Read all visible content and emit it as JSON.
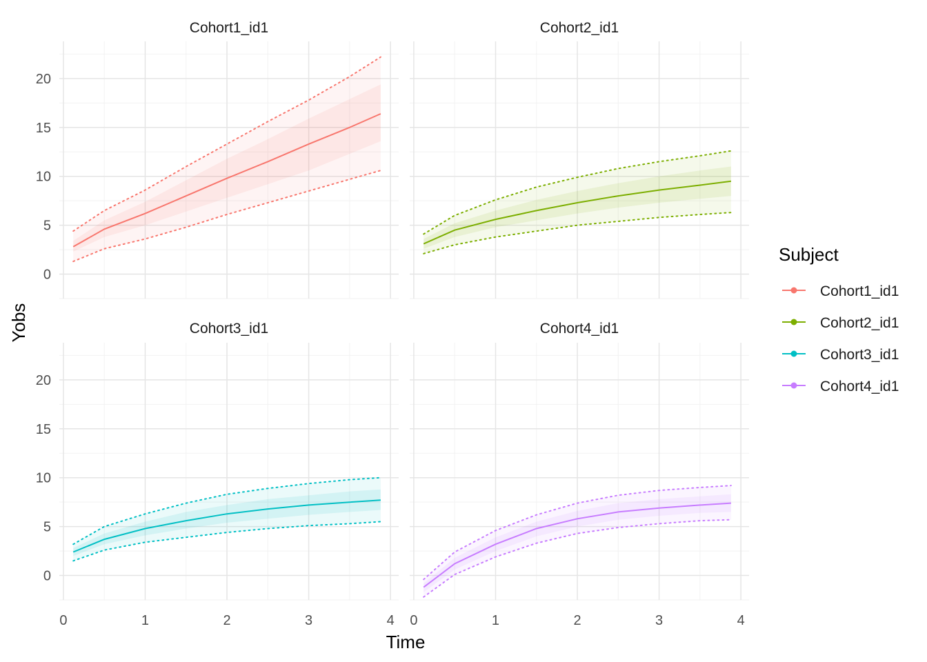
{
  "chart_data": {
    "type": "line",
    "facet_layout": "2x2",
    "xlabel": "Time",
    "ylabel": "Yobs",
    "xlim": [
      -0.05,
      4.1
    ],
    "ylim": [
      -2.5,
      23.8
    ],
    "x_ticks": [
      0,
      1,
      2,
      3,
      4
    ],
    "y_ticks": [
      0,
      5,
      10,
      15,
      20
    ],
    "grid": true,
    "legend": {
      "title": "Subject",
      "placement": "right",
      "entries": [
        "Cohort1_id1",
        "Cohort2_id1",
        "Cohort3_id1",
        "Cohort4_id1"
      ]
    },
    "x": [
      0.12,
      0.5,
      1.0,
      1.5,
      2.0,
      2.5,
      3.0,
      3.5,
      3.88
    ],
    "series": [
      {
        "name": "Cohort1_id1",
        "color": "#F8766D",
        "median": [
          2.8,
          4.6,
          6.2,
          8.0,
          9.8,
          11.5,
          13.3,
          15.0,
          16.4
        ],
        "lower_dotted": [
          1.3,
          2.6,
          3.6,
          4.8,
          6.1,
          7.3,
          8.5,
          9.7,
          10.6
        ],
        "upper_dotted": [
          4.4,
          6.5,
          8.6,
          11.0,
          13.3,
          15.6,
          17.8,
          20.2,
          22.2
        ],
        "inner_lower": [
          2.3,
          3.8,
          5.0,
          6.4,
          7.8,
          9.2,
          10.6,
          12.3,
          13.6
        ],
        "inner_upper": [
          3.4,
          5.5,
          7.4,
          9.6,
          11.8,
          13.8,
          15.9,
          17.9,
          19.4
        ]
      },
      {
        "name": "Cohort2_id1",
        "color": "#7CAE00",
        "median": [
          3.1,
          4.5,
          5.6,
          6.5,
          7.3,
          8.0,
          8.6,
          9.1,
          9.5
        ],
        "lower_dotted": [
          2.1,
          3.0,
          3.8,
          4.4,
          5.0,
          5.4,
          5.8,
          6.1,
          6.3
        ],
        "upper_dotted": [
          4.1,
          6.0,
          7.6,
          8.9,
          9.9,
          10.8,
          11.5,
          12.1,
          12.6
        ],
        "inner_lower": [
          2.6,
          3.8,
          4.8,
          5.5,
          6.2,
          6.8,
          7.3,
          7.7,
          8.0
        ],
        "inner_upper": [
          3.6,
          5.2,
          6.5,
          7.6,
          8.5,
          9.3,
          10.0,
          10.6,
          11.0
        ]
      },
      {
        "name": "Cohort3_id1",
        "color": "#00BFC4",
        "median": [
          2.4,
          3.7,
          4.8,
          5.6,
          6.3,
          6.8,
          7.2,
          7.5,
          7.7
        ],
        "lower_dotted": [
          1.5,
          2.6,
          3.4,
          3.9,
          4.4,
          4.8,
          5.1,
          5.3,
          5.5
        ],
        "upper_dotted": [
          3.2,
          5.0,
          6.3,
          7.4,
          8.3,
          8.9,
          9.4,
          9.8,
          10.0
        ],
        "inner_lower": [
          2.0,
          3.2,
          4.1,
          4.8,
          5.4,
          5.8,
          6.2,
          6.5,
          6.7
        ],
        "inner_upper": [
          2.8,
          4.3,
          5.5,
          6.5,
          7.2,
          7.8,
          8.2,
          8.6,
          8.8
        ]
      },
      {
        "name": "Cohort4_id1",
        "color": "#C77CFF",
        "median": [
          -1.2,
          1.2,
          3.2,
          4.8,
          5.8,
          6.5,
          6.9,
          7.2,
          7.4
        ],
        "lower_dotted": [
          -2.2,
          0.1,
          1.9,
          3.3,
          4.3,
          4.9,
          5.3,
          5.6,
          5.7
        ],
        "upper_dotted": [
          -0.4,
          2.4,
          4.6,
          6.2,
          7.4,
          8.2,
          8.7,
          9.0,
          9.2
        ],
        "inner_lower": [
          -1.7,
          0.6,
          2.5,
          4.0,
          5.0,
          5.7,
          6.1,
          6.4,
          6.5
        ],
        "inner_upper": [
          -0.8,
          1.8,
          3.9,
          5.5,
          6.6,
          7.4,
          7.8,
          8.1,
          8.3
        ]
      }
    ]
  }
}
